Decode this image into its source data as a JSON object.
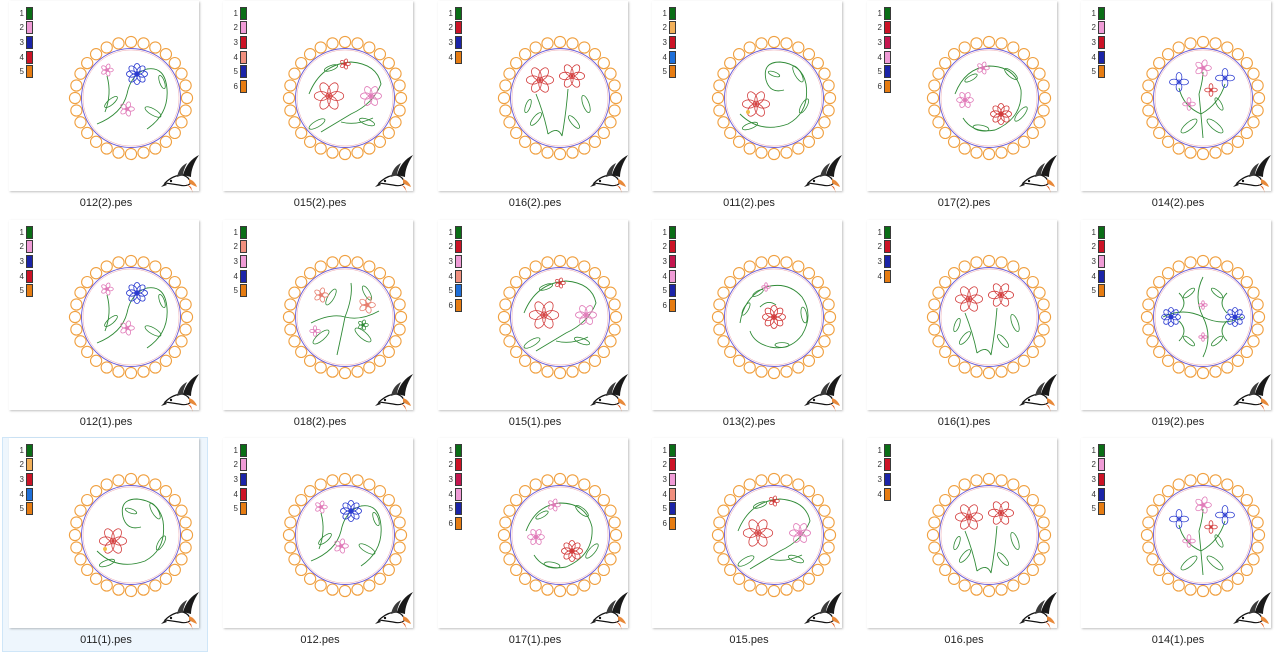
{
  "files": [
    {
      "name": "012(2).pes",
      "colors": [
        "#0a6e16",
        "#ef9bd6",
        "#1b24a8",
        "#cc1326",
        "#e67c12"
      ],
      "motif": "A",
      "selected": false
    },
    {
      "name": "015(2).pes",
      "colors": [
        "#0a6e16",
        "#ef9bd6",
        "#cc1326",
        "#f08f7e",
        "#1b24a8",
        "#e67c12"
      ],
      "motif": "B",
      "selected": false
    },
    {
      "name": "016(2).pes",
      "colors": [
        "#0a6e16",
        "#cc1326",
        "#1b24a8",
        "#e67c12"
      ],
      "motif": "C",
      "selected": false
    },
    {
      "name": "011(2).pes",
      "colors": [
        "#0a6e16",
        "#f2b05a",
        "#cc1326",
        "#1e6fd9",
        "#e67c12"
      ],
      "motif": "D",
      "selected": false
    },
    {
      "name": "017(2).pes",
      "colors": [
        "#0a6e16",
        "#cc1326",
        "#c4164f",
        "#ef9bd6",
        "#1b24a8",
        "#e67c12"
      ],
      "motif": "E",
      "selected": false
    },
    {
      "name": "014(2).pes",
      "colors": [
        "#0a6e16",
        "#ef9bd6",
        "#cc1326",
        "#1b24a8",
        "#e67c12"
      ],
      "motif": "F",
      "selected": false
    },
    {
      "name": "012(1).pes",
      "colors": [
        "#0a6e16",
        "#ef9bd6",
        "#1b24a8",
        "#cc1326",
        "#e67c12"
      ],
      "motif": "A",
      "selected": false
    },
    {
      "name": "018(2).pes",
      "colors": [
        "#0a6e16",
        "#f08f7e",
        "#ef9bd6",
        "#1b24a8",
        "#e67c12"
      ],
      "motif": "G",
      "selected": false
    },
    {
      "name": "015(1).pes",
      "colors": [
        "#0a6e16",
        "#cc1326",
        "#ef9bd6",
        "#f08f7e",
        "#1e6fd9",
        "#e67c12"
      ],
      "motif": "B",
      "selected": false
    },
    {
      "name": "013(2).pes",
      "colors": [
        "#0a6e16",
        "#cc1326",
        "#c4164f",
        "#ef9bd6",
        "#1b24a8",
        "#e67c12"
      ],
      "motif": "H",
      "selected": false
    },
    {
      "name": "016(1).pes",
      "colors": [
        "#0a6e16",
        "#cc1326",
        "#1b24a8",
        "#e67c12"
      ],
      "motif": "C",
      "selected": false
    },
    {
      "name": "019(2).pes",
      "colors": [
        "#0a6e16",
        "#cc1326",
        "#ef9bd6",
        "#1b24a8",
        "#e67c12"
      ],
      "motif": "I",
      "selected": false
    },
    {
      "name": "011(1).pes",
      "colors": [
        "#0a6e16",
        "#f2b05a",
        "#cc1326",
        "#1e6fd9",
        "#e67c12"
      ],
      "motif": "D",
      "selected": true
    },
    {
      "name": "012.pes",
      "colors": [
        "#0a6e16",
        "#ef9bd6",
        "#1b24a8",
        "#cc1326",
        "#e67c12"
      ],
      "motif": "A",
      "selected": false
    },
    {
      "name": "017(1).pes",
      "colors": [
        "#0a6e16",
        "#cc1326",
        "#c4164f",
        "#ef9bd6",
        "#1b24a8",
        "#e67c12"
      ],
      "motif": "E",
      "selected": false
    },
    {
      "name": "015.pes",
      "colors": [
        "#0a6e16",
        "#cc1326",
        "#ef9bd6",
        "#f08f7e",
        "#1b24a8",
        "#e67c12"
      ],
      "motif": "B",
      "selected": false
    },
    {
      "name": "016.pes",
      "colors": [
        "#0a6e16",
        "#cc1326",
        "#1b24a8",
        "#e67c12"
      ],
      "motif": "C",
      "selected": false
    },
    {
      "name": "014(1).pes",
      "colors": [
        "#0a6e16",
        "#ef9bd6",
        "#cc1326",
        "#1b24a8",
        "#e67c12"
      ],
      "motif": "F",
      "selected": false
    }
  ],
  "icons": {
    "thumbnail_badge": "hummingbird-icon"
  },
  "colors": {
    "scallop": "#f0a040",
    "inner_ring": "#6a5cd8",
    "selection_bg": "#eef6fd",
    "stem": "#2f8a36"
  }
}
